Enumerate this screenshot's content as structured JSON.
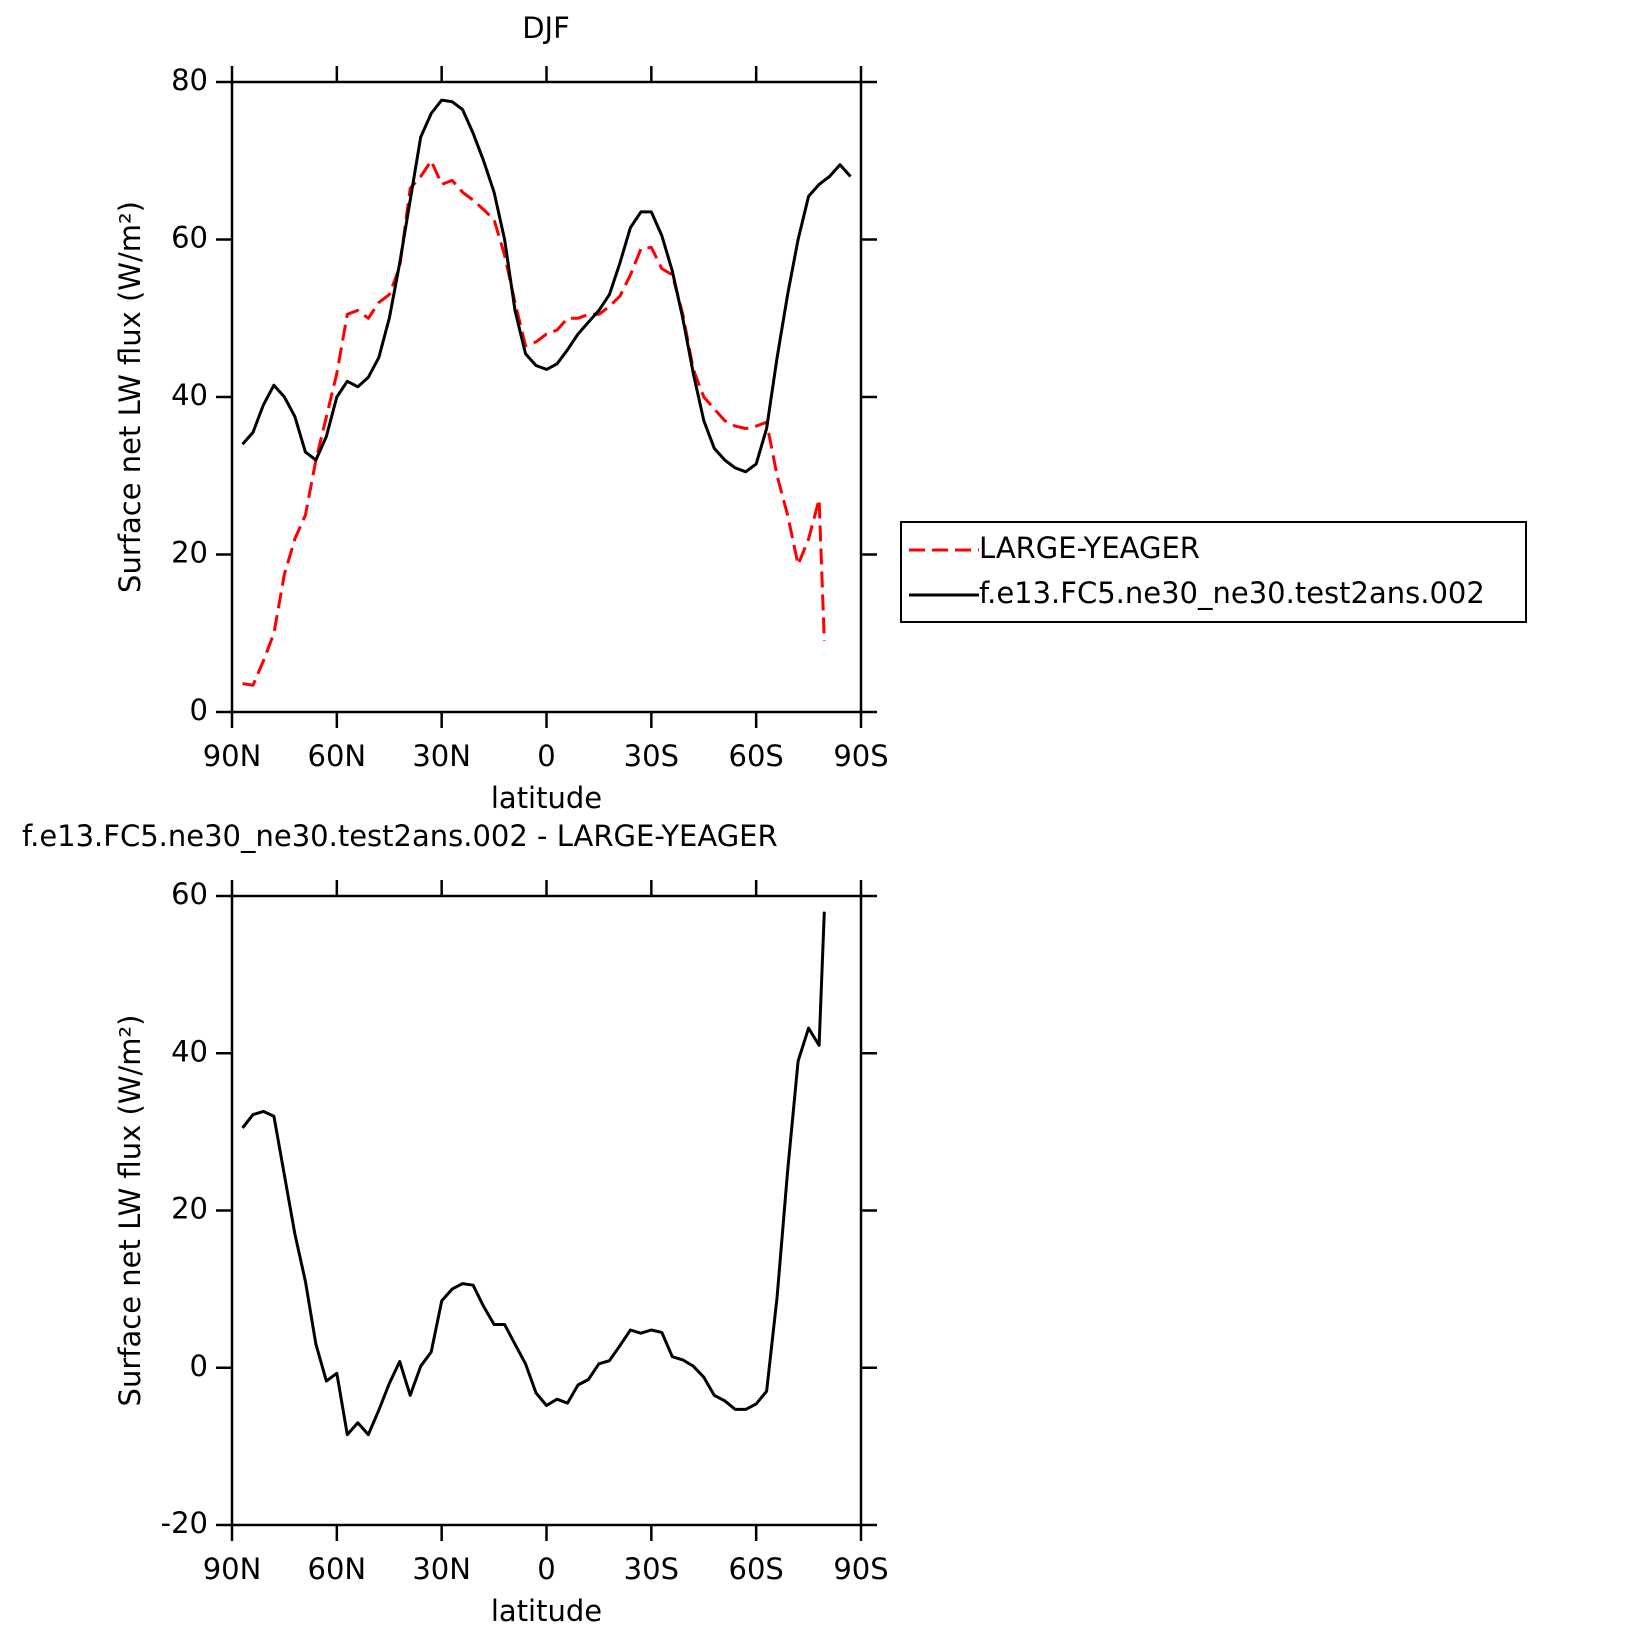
{
  "chart_data": [
    {
      "type": "line",
      "title": "DJF",
      "xlabel": "latitude",
      "ylabel": "Surface net LW flux (W/m²)",
      "x": [
        87,
        84,
        81,
        78,
        75,
        72,
        69,
        66,
        63,
        60,
        57,
        54,
        51,
        48,
        45,
        42,
        39,
        36,
        33,
        30,
        27,
        24,
        21,
        18,
        15,
        12,
        9,
        6,
        3,
        0,
        -3,
        -6,
        -9,
        -12,
        -15,
        -18,
        -21,
        -24,
        -27,
        -30,
        -33,
        -36,
        -39,
        -42,
        -45,
        -48,
        -51,
        -54,
        -57,
        -60,
        -63,
        -66,
        -69,
        -72,
        -75,
        -78,
        -79.5,
        -81,
        -84,
        -87
      ],
      "xlim": [
        90,
        -90
      ],
      "xticks": [
        {
          "value": 90,
          "label": "90N"
        },
        {
          "value": 60,
          "label": "60N"
        },
        {
          "value": 30,
          "label": "30N"
        },
        0,
        {
          "value": -30,
          "label": "30S"
        },
        {
          "value": -60,
          "label": "60S"
        },
        {
          "value": -90,
          "label": "90S"
        }
      ],
      "ylim": [
        0,
        80
      ],
      "yticks": [
        0,
        20,
        40,
        60,
        80
      ],
      "legend": "right",
      "series": [
        {
          "name": "LARGE-YEAGER",
          "color": "#ff0000",
          "dashed": true,
          "values": [
            3.6,
            3.4,
            6.5,
            10,
            17.5,
            22,
            25,
            32,
            37.5,
            43,
            50.5,
            51,
            50,
            52,
            53,
            56.5,
            66.5,
            68,
            70,
            67,
            67.5,
            66,
            65,
            63.8,
            62.5,
            58,
            52,
            46.5,
            47,
            48,
            48.5,
            50,
            50,
            50.5,
            50.5,
            51.5,
            52.8,
            55.5,
            58.8,
            59,
            56.3,
            55.5,
            50.5,
            43.5,
            40,
            38.5,
            37,
            36.3,
            36,
            36.3,
            36.8,
            30,
            25,
            18.7,
            22,
            27,
            9,
            null,
            null,
            null
          ]
        },
        {
          "name": "f.e13.FC5.ne30_ne30.test2ans.002",
          "color": "#000000",
          "dashed": false,
          "values": [
            34,
            35.5,
            39,
            41.5,
            40,
            37.5,
            33,
            32,
            35,
            40,
            42,
            41.3,
            42.5,
            45,
            50,
            57,
            65,
            73,
            76,
            77.7,
            77.5,
            76.5,
            73.5,
            70,
            66,
            60,
            51,
            45.5,
            44,
            43.5,
            44.2,
            46,
            48,
            49.5,
            51,
            53,
            57,
            61.5,
            63.5,
            63.5,
            60.5,
            56,
            50,
            43,
            37,
            33.5,
            32,
            31,
            30.5,
            31.5,
            36,
            45,
            53,
            60,
            65.5,
            67,
            67.5,
            68,
            69.5,
            68
          ]
        }
      ]
    },
    {
      "type": "line",
      "title": "f.e13.FC5.ne30_ne30.test2ans.002 - LARGE-YEAGER",
      "xlabel": "latitude",
      "ylabel": "Surface net LW flux (W/m²)",
      "x": [
        87,
        84,
        81,
        78,
        75,
        72,
        69,
        66,
        63,
        60,
        57,
        54,
        51,
        48,
        45,
        42,
        39,
        36,
        33,
        30,
        27,
        24,
        21,
        18,
        15,
        12,
        9,
        6,
        3,
        0,
        -3,
        -6,
        -9,
        -12,
        -15,
        -18,
        -21,
        -24,
        -27,
        -30,
        -33,
        -36,
        -39,
        -42,
        -45,
        -48,
        -51,
        -54,
        -57,
        -60,
        -63,
        -66,
        -69,
        -72,
        -75,
        -78,
        -79.5
      ],
      "xlim": [
        90,
        -90
      ],
      "xticks": [
        {
          "value": 90,
          "label": "90N"
        },
        {
          "value": 60,
          "label": "60N"
        },
        {
          "value": 30,
          "label": "30N"
        },
        0,
        {
          "value": -30,
          "label": "30S"
        },
        {
          "value": -60,
          "label": "60S"
        },
        {
          "value": -90,
          "label": "90S"
        }
      ],
      "ylim": [
        -20,
        60
      ],
      "yticks": [
        -20,
        0,
        20,
        40,
        60
      ],
      "color": "#000000",
      "values": [
        30.5,
        32.2,
        32.6,
        32,
        24.5,
        17,
        11,
        3,
        -1.7,
        -0.7,
        -8.5,
        -7,
        -8.5,
        -5.4,
        -2,
        0.8,
        -3.5,
        0.2,
        2,
        8.5,
        10,
        10.7,
        10.5,
        7.8,
        5.5,
        5.5,
        3,
        0.5,
        -3.2,
        -4.8,
        -4,
        -4.5,
        -2.2,
        -1.5,
        0.5,
        0.9,
        2.8,
        4.8,
        4.4,
        4.8,
        4.5,
        1.4,
        1,
        0.2,
        -1.2,
        -3.5,
        -4.2,
        -5.3,
        -5.3,
        -4.6,
        -3,
        9,
        25,
        39,
        43.2,
        41,
        58
      ]
    }
  ]
}
